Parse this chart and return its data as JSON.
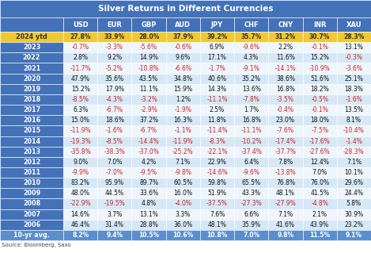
{
  "title": "Silver Returns in Different Currencies",
  "columns": [
    "",
    "USD",
    "EUR",
    "GBP",
    "AUD",
    "JPY",
    "CHF",
    "CNY",
    "INR",
    "XAU"
  ],
  "rows": [
    [
      "2024 ytd",
      "27.8%",
      "33.9%",
      "28.0%",
      "37.9%",
      "39.2%",
      "35.7%",
      "31.2%",
      "30.7%",
      "28.3%"
    ],
    [
      "2023",
      "-0.7%",
      "-3.3%",
      "-5.6%",
      "-0.6%",
      "6.9%",
      "-9.6%",
      "2.2%",
      "-0.1%",
      "13.1%"
    ],
    [
      "2022",
      "2.8%",
      "9.2%",
      "14.9%",
      "9.6%",
      "17.1%",
      "4.3%",
      "11.6%",
      "15.2%",
      "-0.3%"
    ],
    [
      "2021",
      "-11.7%",
      "-5.2%",
      "-10.8%",
      "-6.6%",
      "-1.7%",
      "-9.1%",
      "-14.1%",
      "-10.9%",
      "-3.6%"
    ],
    [
      "2020",
      "47.9%",
      "35.6%",
      "43.5%",
      "34.8%",
      "40.6%",
      "35.2%",
      "38.6%",
      "51.6%",
      "25.1%"
    ],
    [
      "2019",
      "15.2%",
      "17.9%",
      "11.1%",
      "15.9%",
      "14.3%",
      "13.6%",
      "16.8%",
      "18.2%",
      "18.3%"
    ],
    [
      "2018",
      "-8.5%",
      "-4.3%",
      "-3.2%",
      "1.2%",
      "-11.1%",
      "-7.8%",
      "-3.5%",
      "-0.5%",
      "-1.6%"
    ],
    [
      "2017",
      "6.3%",
      "-6.7%",
      "-2.9%",
      "-1.9%",
      "2.5%",
      "1.7%",
      "-0.4%",
      "-0.1%",
      "13.5%"
    ],
    [
      "2016",
      "15.0%",
      "18.6%",
      "37.2%",
      "16.3%",
      "11.8%",
      "16.8%",
      "23.0%",
      "18.0%",
      "8.1%"
    ],
    [
      "2015",
      "-11.9%",
      "-1.6%",
      "-6.7%",
      "-1.1%",
      "-11.4%",
      "-11.1%",
      "-7.6%",
      "-7.5%",
      "-10.4%"
    ],
    [
      "2014",
      "-19.3%",
      "-8.5%",
      "-14.4%",
      "-11.9%",
      "-8.3%",
      "-10.2%",
      "-17.4%",
      "-17.6%",
      "-1.4%"
    ],
    [
      "2013",
      "-35.8%",
      "-38.3%",
      "-37.0%",
      "-25.2%",
      "-22.1%",
      "-37.4%",
      "-37.7%",
      "-27.6%",
      "-28.3%"
    ],
    [
      "2012",
      "9.0%",
      "7.0%",
      "4.2%",
      "7.1%",
      "22.9%",
      "6.4%",
      "7.8%",
      "12.4%",
      "7.1%"
    ],
    [
      "2011",
      "-9.9%",
      "-7.0%",
      "-9.5%",
      "-9.8%",
      "-14.6%",
      "-9.6%",
      "-13.8%",
      "7.0%",
      "10.1%"
    ],
    [
      "2010",
      "83.2%",
      "95.9%",
      "89.7%",
      "60.5%",
      "59.8%",
      "65.5%",
      "76.8%",
      "76.0%",
      "29.6%"
    ],
    [
      "2009",
      "48.0%",
      "44.5%",
      "33.6%",
      "16.0%",
      "51.9%",
      "43.3%",
      "48.1%",
      "41.5%",
      "24.4%"
    ],
    [
      "2008",
      "-22.9%",
      "-19.5%",
      "4.8%",
      "-4.0%",
      "-37.5%",
      "-27.3%",
      "-27.9%",
      "-4.8%",
      "5.8%"
    ],
    [
      "2007",
      "14.6%",
      "3.7%",
      "13.1%",
      "3.3%",
      "7.6%",
      "6.6%",
      "7.1%",
      "2.1%",
      "30.9%"
    ],
    [
      "2006",
      "46.4%",
      "31.4%",
      "28.8%",
      "36.0%",
      "48.1%",
      "35.9%",
      "41.6%",
      "43.9%",
      "23.2%"
    ],
    [
      "10-yr avg.",
      "8.2%",
      "9.4%",
      "10.5%",
      "10.6%",
      "10.8%",
      "7.0%",
      "9.8%",
      "11.5%",
      "9.1%"
    ]
  ],
  "title_bg": "#4472b8",
  "title_color": "#ffffff",
  "header_bg": "#4472b8",
  "header_color": "#ffffff",
  "row_label_bg": "#4472b8",
  "row_label_color": "#ffffff",
  "ytd_row_bg": "#f0c832",
  "ytd_row_color": "#333333",
  "avg_row_bg": "#5b8ecb",
  "avg_row_color": "#ffffff",
  "cell_bg_odd": "#d6e8f5",
  "cell_bg_even": "#eef5fb",
  "source_text": "Source: Bloomberg, Saxo",
  "neg_color": "#cc2222",
  "pos_color": "#111111",
  "fig_w": 4.69,
  "fig_h": 3.19,
  "dpi": 100
}
